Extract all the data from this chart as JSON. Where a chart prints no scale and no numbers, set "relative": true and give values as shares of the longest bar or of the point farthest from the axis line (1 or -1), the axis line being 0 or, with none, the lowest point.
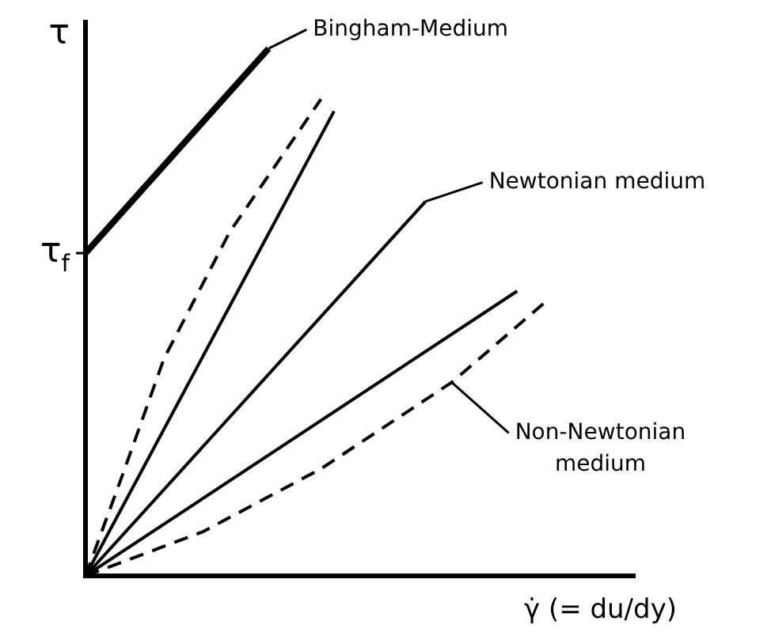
{
  "chart_data": {
    "type": "line",
    "relative": true,
    "ylabel": "τ",
    "xlabel": "γ̇ (= du/dy)",
    "legend": false,
    "grid": false,
    "marker": "none",
    "categories": [
      null,
      null,
      null,
      null,
      null,
      null,
      null,
      null,
      null,
      null,
      null,
      null,
      null,
      null,
      null,
      null,
      null,
      null,
      null,
      null,
      null,
      null,
      null,
      null,
      null,
      null,
      null,
      null,
      null,
      null,
      null,
      null,
      null,
      null,
      null,
      null,
      null,
      null,
      null,
      null,
      null,
      null,
      null
    ],
    "series": [
      {
        "color": "#000000",
        "line_style": "solid",
        "values": [
          0.612,
          null,
          null,
          null,
          null,
          null,
          null,
          null,
          null,
          null,
          null,
          null,
          null,
          null,
          1,
          null,
          null,
          null,
          null,
          null,
          null,
          null,
          null,
          null,
          null,
          null,
          null,
          null,
          null,
          null,
          null,
          null,
          null,
          null,
          null,
          null,
          null,
          null,
          null,
          null,
          null,
          null,
          null
        ]
      },
      {
        "color": "#000000",
        "line_style": "dashed",
        "values": [
          0,
          null,
          null,
          0.203,
          null,
          null,
          0.412,
          null,
          null,
          null,
          null,
          0.651,
          null,
          null,
          null,
          null,
          null,
          null,
          0.904,
          null,
          null,
          null,
          null,
          null,
          null,
          null,
          null,
          null,
          null,
          null,
          null,
          null,
          null,
          null,
          null,
          null,
          null,
          null,
          null,
          null,
          null,
          null,
          null
        ]
      },
      {
        "color": "#000000",
        "line_style": "solid",
        "values": [
          0,
          null,
          null,
          null,
          null,
          null,
          null,
          null,
          null,
          null,
          null,
          null,
          null,
          null,
          null,
          null,
          null,
          null,
          null,
          0.881,
          null,
          null,
          null,
          null,
          null,
          null,
          null,
          null,
          null,
          null,
          null,
          null,
          null,
          null,
          null,
          null,
          null,
          null,
          null,
          null,
          null,
          null,
          null
        ]
      },
      {
        "color": "#000000",
        "line_style": "solid",
        "values": [
          0,
          null,
          null,
          null,
          null,
          null,
          null,
          null,
          null,
          null,
          null,
          null,
          null,
          null,
          null,
          null,
          null,
          null,
          null,
          null,
          null,
          null,
          null,
          null,
          null,
          null,
          0.71,
          null,
          null,
          null,
          null,
          null,
          null,
          null,
          null,
          null,
          null,
          null,
          null,
          null,
          null,
          null,
          null
        ]
      },
      {
        "color": "#000000",
        "line_style": "solid",
        "values": [
          0,
          null,
          null,
          null,
          null,
          null,
          null,
          null,
          null,
          null,
          null,
          null,
          null,
          null,
          null,
          null,
          null,
          null,
          null,
          null,
          null,
          null,
          null,
          null,
          null,
          null,
          null,
          null,
          null,
          null,
          null,
          null,
          null,
          0.54,
          null,
          null,
          null,
          null,
          null,
          null,
          null,
          null,
          null
        ]
      },
      {
        "color": "#000000",
        "line_style": "dashed",
        "values": [
          0,
          null,
          null,
          null,
          null,
          null,
          null,
          null,
          null,
          0.084,
          null,
          null,
          null,
          null,
          null,
          null,
          null,
          null,
          0.203,
          null,
          null,
          null,
          null,
          null,
          null,
          null,
          null,
          null,
          0.367,
          null,
          null,
          null,
          null,
          null,
          null,
          0.516,
          null,
          null,
          null,
          null,
          null,
          null,
          null
        ]
      }
    ],
    "annotations": [
      "τ$_{f}$",
      "Bingham-Medium",
      "Newtonian medium",
      "Non-Newtonian medium"
    ]
  }
}
